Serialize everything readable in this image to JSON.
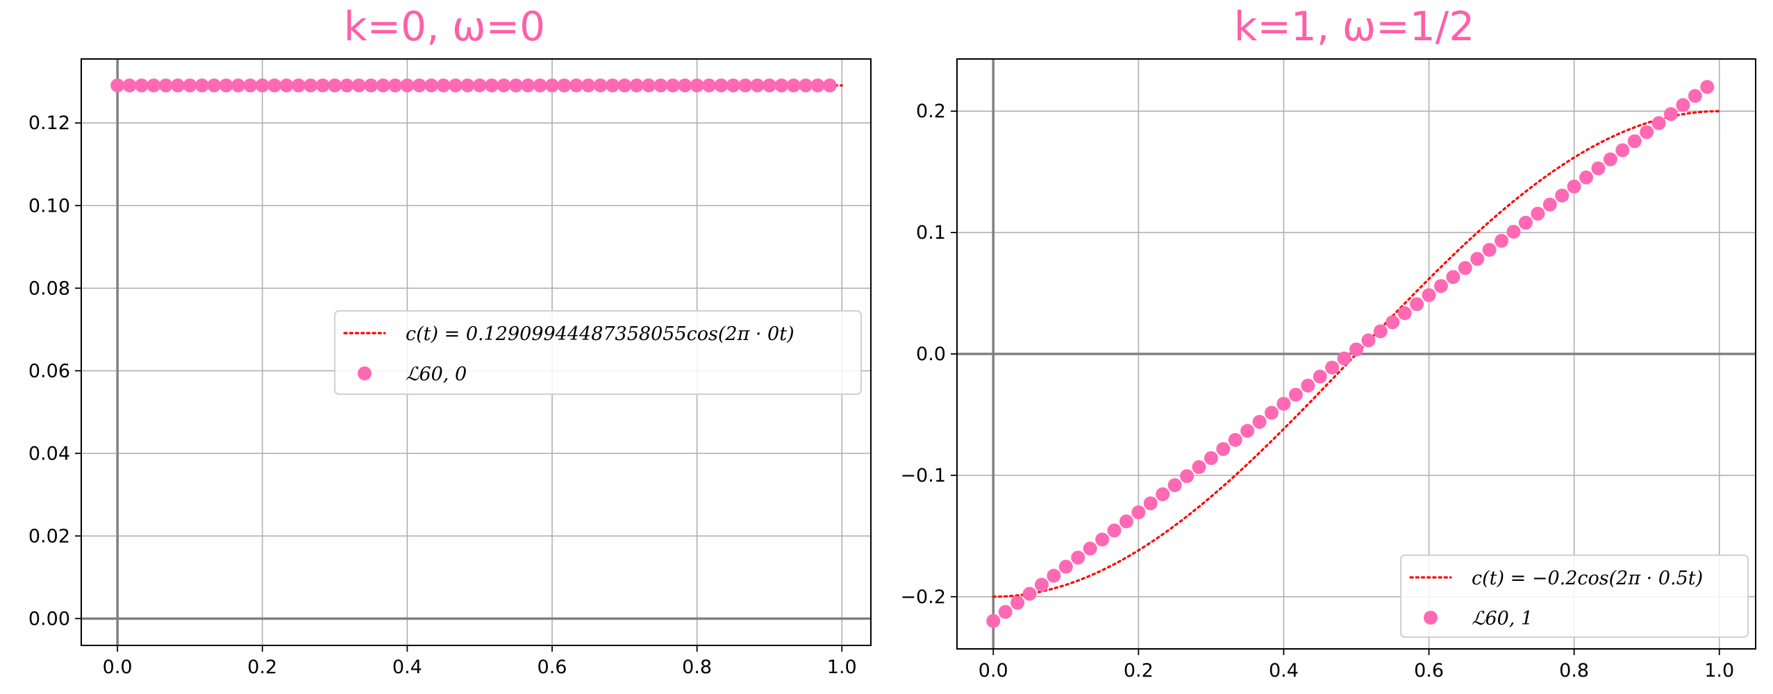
{
  "chart_data": [
    {
      "type": "scatter",
      "title": "k=0,  ω=0",
      "xlim": [
        -0.05,
        1.04
      ],
      "ylim": [
        -0.0065,
        0.1355
      ],
      "xticks": [
        0.0,
        0.2,
        0.4,
        0.6,
        0.8,
        1.0
      ],
      "xtick_labels": [
        "0.0",
        "0.2",
        "0.4",
        "0.6",
        "0.8",
        "1.0"
      ],
      "yticks": [
        0.0,
        0.02,
        0.04,
        0.06,
        0.08,
        0.1,
        0.12
      ],
      "ytick_labels": [
        "0.00",
        "0.02",
        "0.04",
        "0.06",
        "0.08",
        "0.10",
        "0.12"
      ],
      "grid": true,
      "legend_position": "center-right",
      "series": [
        {
          "name": "c(t) = 0.12909944487358055cos(2π · 0t)",
          "kind": "line",
          "style": "dotted",
          "color": "#ff0000",
          "x_range": [
            0,
            1
          ],
          "n": 60,
          "amplitude": 0.12909944487358055,
          "frequency": 0
        },
        {
          "name": "ℒ60, 0",
          "kind": "scatter",
          "color": "#ff69b4",
          "x_range": [
            0,
            0.9833
          ],
          "n": 60,
          "value": 0.12909944487358055
        }
      ]
    },
    {
      "type": "scatter",
      "title": "k=1,  ω=1/2",
      "xlim": [
        -0.05,
        1.05
      ],
      "ylim": [
        -0.243,
        0.243
      ],
      "xticks": [
        0.0,
        0.2,
        0.4,
        0.6,
        0.8,
        1.0
      ],
      "xtick_labels": [
        "0.0",
        "0.2",
        "0.4",
        "0.6",
        "0.8",
        "1.0"
      ],
      "yticks": [
        -0.2,
        -0.1,
        0.0,
        0.1,
        0.2
      ],
      "ytick_labels": [
        "−0.2",
        "−0.1",
        "0.0",
        "0.1",
        "0.2"
      ],
      "grid": true,
      "legend_position": "lower-right",
      "series": [
        {
          "name": "c(t) = −0.2cos(2π · 0.5t)",
          "kind": "line",
          "style": "dotted",
          "color": "#ff0000",
          "x_range": [
            0,
            1
          ],
          "amplitude": -0.2,
          "frequency": 0.5
        },
        {
          "name": "ℒ60, 1",
          "kind": "scatter",
          "color": "#ff69b4",
          "x_range": [
            0,
            0.9833
          ],
          "n": 60,
          "y_range": [
            -0.22,
            0.22
          ]
        }
      ]
    }
  ]
}
